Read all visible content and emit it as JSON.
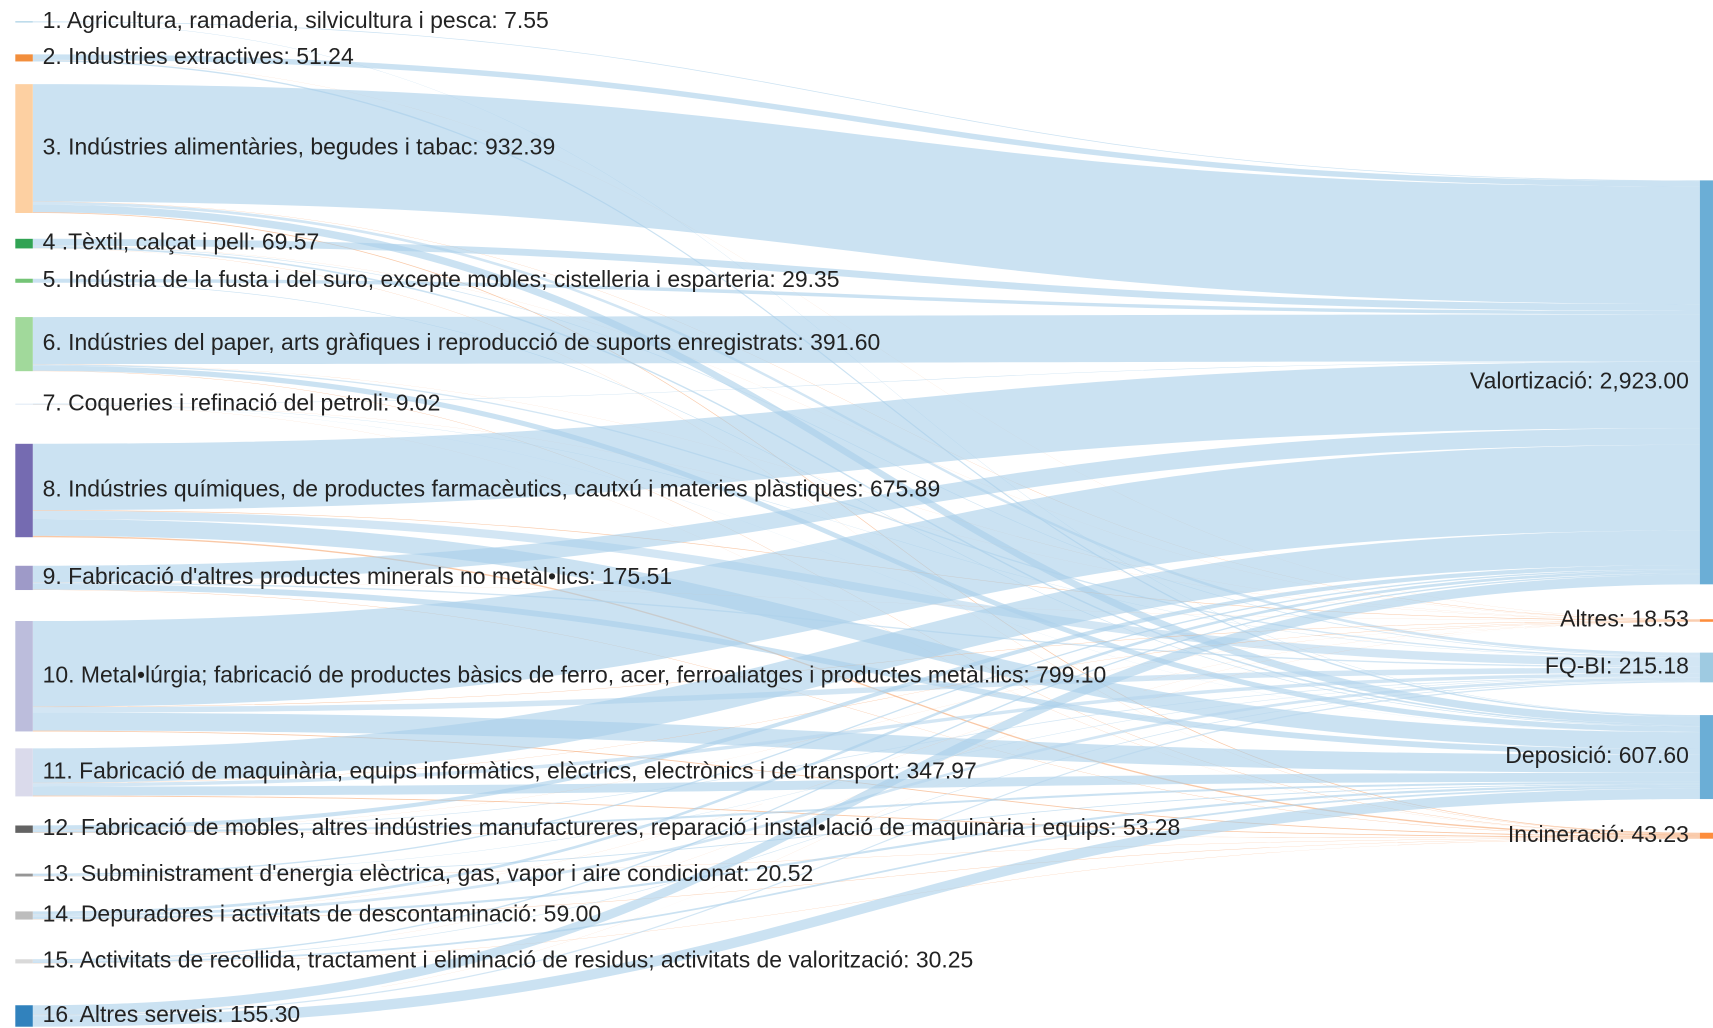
{
  "chart_data": {
    "type": "sankey",
    "nodes": [
      {
        "label": "1. Agricultura, ramaderia, silvicultura i pesca: 7.55",
        "value": 7.55,
        "color": "#9ecae1"
      },
      {
        "label": "2. Industries extractives: 51.24",
        "value": 51.24,
        "color": "#f28e3c"
      },
      {
        "label": "3. Indústries alimentàries, begudes i tabac: 932.39",
        "value": 932.39,
        "color": "#fdd0a2"
      },
      {
        "label": "4 .Tèxtil, calçat i pell: 69.57",
        "value": 69.57,
        "color": "#31a354"
      },
      {
        "label": "5. Indústria de la fusta i del suro, excepte mobles; cistelleria i esparteria: 29.35",
        "value": 29.35,
        "color": "#74c476"
      },
      {
        "label": "6. Indústries del paper, arts gràfiques i reproducció de suports enregistrats: 391.60",
        "value": 391.6,
        "color": "#a1d99b"
      },
      {
        "label": "7. Coqueries i refinació del petroli: 9.02",
        "value": 9.02,
        "color": "#e5eef7"
      },
      {
        "label": "8. Indústries químiques, de productes farmacèutics, cautxú i materies plàstiques: 675.89",
        "value": 675.89,
        "color": "#756bb1"
      },
      {
        "label": "9. Fabricació d'altres productes minerals no metàl•lics: 175.51",
        "value": 175.51,
        "color": "#9e9ac8"
      },
      {
        "label": "10. Metal•lúrgia; fabricació de productes bàsics de ferro, acer, ferroaliatges i productes metàl.lics: 799.10",
        "value": 799.1,
        "color": "#bcbddc"
      },
      {
        "label": "11. Fabricació de maquinària, equips informàtics, elèctrics, electrònics i de transport: 347.97",
        "value": 347.97,
        "color": "#dadaeb"
      },
      {
        "label": "12. Fabricació de mobles, altres indústries manufactureres, reparació i instal•lació de maquinària i equips: 53.28",
        "value": 53.28,
        "color": "#636363"
      },
      {
        "label": "13. Subministrament d'energia elèctrica, gas, vapor i aire condicionat: 20.52",
        "value": 20.52,
        "color": "#969696"
      },
      {
        "label": "14. Depuradores i activitats de descontaminació: 59.00",
        "value": 59.0,
        "color": "#bdbdbd"
      },
      {
        "label": "15. Activitats de recollida, tractament i eliminació de residus; activitats de valorització: 30.25",
        "value": 30.25,
        "color": "#d9d9d9"
      },
      {
        "label": "16. Altres serveis: 155.30",
        "value": 155.3,
        "color": "#3182bd"
      },
      {
        "label": "Valortizació: 2,923.00",
        "value": 2923.0,
        "color": "#6baed6",
        "link_color": "#a9cfe9"
      },
      {
        "label": "Altres: 18.53",
        "value": 18.53,
        "color": "#fd8d3c",
        "link_color": "#f5a36a"
      },
      {
        "label": "FQ-BI: 215.18",
        "value": 215.18,
        "color": "#9ecae1",
        "link_color": "#b5d6ec"
      },
      {
        "label": "Deposició: 607.60",
        "value": 607.6,
        "color": "#6baed6",
        "link_color": "#a9cfe9"
      },
      {
        "label": "Incineració: 43.23",
        "value": 43.23,
        "color": "#fd8d3c",
        "link_color": "#f5a36a"
      }
    ],
    "links": [
      {
        "source": 0,
        "target": 16,
        "value": 5
      },
      {
        "source": 0,
        "target": 19,
        "value": 2.55
      },
      {
        "source": 1,
        "target": 16,
        "value": 40
      },
      {
        "source": 1,
        "target": 17,
        "value": 1
      },
      {
        "source": 1,
        "target": 19,
        "value": 10.24
      },
      {
        "source": 2,
        "target": 16,
        "value": 850
      },
      {
        "source": 2,
        "target": 17,
        "value": 2
      },
      {
        "source": 2,
        "target": 18,
        "value": 20
      },
      {
        "source": 2,
        "target": 19,
        "value": 55
      },
      {
        "source": 2,
        "target": 20,
        "value": 5.39
      },
      {
        "source": 3,
        "target": 16,
        "value": 50
      },
      {
        "source": 3,
        "target": 17,
        "value": 1
      },
      {
        "source": 3,
        "target": 18,
        "value": 5
      },
      {
        "source": 3,
        "target": 19,
        "value": 12
      },
      {
        "source": 3,
        "target": 20,
        "value": 1.57
      },
      {
        "source": 4,
        "target": 16,
        "value": 25
      },
      {
        "source": 4,
        "target": 19,
        "value": 4.35
      },
      {
        "source": 5,
        "target": 16,
        "value": 340
      },
      {
        "source": 5,
        "target": 17,
        "value": 1
      },
      {
        "source": 5,
        "target": 18,
        "value": 10
      },
      {
        "source": 5,
        "target": 19,
        "value": 38
      },
      {
        "source": 5,
        "target": 20,
        "value": 2.6
      },
      {
        "source": 6,
        "target": 16,
        "value": 3
      },
      {
        "source": 6,
        "target": 17,
        "value": 1
      },
      {
        "source": 6,
        "target": 18,
        "value": 3
      },
      {
        "source": 6,
        "target": 19,
        "value": 1.02
      },
      {
        "source": 6,
        "target": 20,
        "value": 1
      },
      {
        "source": 7,
        "target": 16,
        "value": 480
      },
      {
        "source": 7,
        "target": 17,
        "value": 4
      },
      {
        "source": 7,
        "target": 18,
        "value": 60
      },
      {
        "source": 7,
        "target": 19,
        "value": 121.85
      },
      {
        "source": 7,
        "target": 20,
        "value": 10.04
      },
      {
        "source": 8,
        "target": 16,
        "value": 120
      },
      {
        "source": 8,
        "target": 17,
        "value": 1
      },
      {
        "source": 8,
        "target": 18,
        "value": 10
      },
      {
        "source": 8,
        "target": 19,
        "value": 42
      },
      {
        "source": 8,
        "target": 20,
        "value": 2.51
      },
      {
        "source": 9,
        "target": 16,
        "value": 620
      },
      {
        "source": 9,
        "target": 17,
        "value": 3
      },
      {
        "source": 9,
        "target": 18,
        "value": 40
      },
      {
        "source": 9,
        "target": 19,
        "value": 130
      },
      {
        "source": 9,
        "target": 20,
        "value": 6.1
      },
      {
        "source": 10,
        "target": 16,
        "value": 250
      },
      {
        "source": 10,
        "target": 17,
        "value": 2
      },
      {
        "source": 10,
        "target": 18,
        "value": 25
      },
      {
        "source": 10,
        "target": 19,
        "value": 65
      },
      {
        "source": 10,
        "target": 20,
        "value": 5.97
      },
      {
        "source": 11,
        "target": 16,
        "value": 30
      },
      {
        "source": 11,
        "target": 17,
        "value": 1
      },
      {
        "source": 11,
        "target": 18,
        "value": 5
      },
      {
        "source": 11,
        "target": 19,
        "value": 15
      },
      {
        "source": 11,
        "target": 20,
        "value": 2.28
      },
      {
        "source": 12,
        "target": 16,
        "value": 10
      },
      {
        "source": 12,
        "target": 18,
        "value": 3
      },
      {
        "source": 12,
        "target": 19,
        "value": 6
      },
      {
        "source": 12,
        "target": 20,
        "value": 1.52
      },
      {
        "source": 13,
        "target": 16,
        "value": 20
      },
      {
        "source": 13,
        "target": 17,
        "value": 0.5
      },
      {
        "source": 13,
        "target": 18,
        "value": 20
      },
      {
        "source": 13,
        "target": 19,
        "value": 16
      },
      {
        "source": 13,
        "target": 20,
        "value": 2.5
      },
      {
        "source": 14,
        "target": 16,
        "value": 10
      },
      {
        "source": 14,
        "target": 17,
        "value": 0.5
      },
      {
        "source": 14,
        "target": 18,
        "value": 5
      },
      {
        "source": 14,
        "target": 19,
        "value": 13
      },
      {
        "source": 14,
        "target": 20,
        "value": 1.75
      },
      {
        "source": 15,
        "target": 16,
        "value": 70
      },
      {
        "source": 15,
        "target": 17,
        "value": 0.53
      },
      {
        "source": 15,
        "target": 18,
        "value": 9.18
      },
      {
        "source": 15,
        "target": 19,
        "value": 75.59
      }
    ]
  }
}
